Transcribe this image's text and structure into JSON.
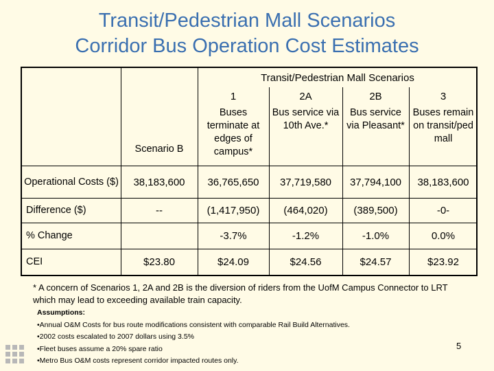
{
  "title": {
    "line1": "Transit/Pedestrian Mall Scenarios",
    "line2": "Corridor Bus Operation Cost Estimates"
  },
  "table": {
    "group_header": "Transit/Pedestrian Mall Scenarios",
    "columns": [
      {
        "number": "",
        "scenario_label": "Scenario B",
        "description": ""
      },
      {
        "number": "1",
        "scenario_label": "",
        "description": "Buses terminate at edges of campus*"
      },
      {
        "number": "2A",
        "scenario_label": "",
        "description": "Bus service via 10th Ave.*"
      },
      {
        "number": "2B",
        "scenario_label": "",
        "description": "Bus service via Pleasant*"
      },
      {
        "number": "3",
        "scenario_label": "",
        "description": "Buses remain on transit/ped mall"
      }
    ],
    "rows": [
      {
        "label": "Operational Costs ($)",
        "values": [
          "38,183,600",
          "36,765,650",
          "37,719,580",
          "37,794,100",
          "38,183,600"
        ]
      },
      {
        "label": "Difference ($)",
        "values": [
          "--",
          "(1,417,950)",
          "(464,020)",
          "(389,500)",
          "-0-"
        ]
      },
      {
        "label": "% Change",
        "values": [
          "",
          "-3.7%",
          "-1.2%",
          "-1.0%",
          "0.0%"
        ]
      },
      {
        "label": "CEI",
        "values": [
          "$23.80",
          "$24.09",
          "$24.56",
          "$24.57",
          "$23.92"
        ]
      }
    ]
  },
  "footnote": "* A concern of Scenarios 1, 2A and 2B is the diversion of riders from the UofM Campus Connector to LRT which may lead to exceeding available train capacity.",
  "assumptions": {
    "heading": "Assumptions:",
    "items": [
      "•Annual O&M Costs for bus route modifications consistent with comparable Rail Build Alternatives.",
      "•2002 costs escalated to 2007 dollars using 3.5%",
      "•Fleet buses assume a 20% spare ratio",
      "•Metro Bus O&M costs represent corridor impacted routes only."
    ]
  },
  "page_number": "5",
  "colors": {
    "title": "#3a6fb0",
    "background": "#fffbe6",
    "logo": "#b8b8b8"
  }
}
